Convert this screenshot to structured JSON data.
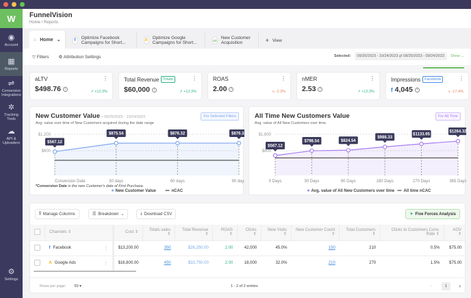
{
  "app": {
    "title": "FunnelVision",
    "breadcrumb": "Home  /  Reports",
    "logo_text": "W"
  },
  "sidebar": {
    "items": [
      {
        "label": "Account",
        "icon": "user-circle-icon",
        "glyph": "◉"
      },
      {
        "label": "Reports",
        "icon": "grid-icon",
        "glyph": "▦",
        "active": true
      },
      {
        "label": "Conversion Integrations",
        "icon": "route-icon",
        "glyph": "⇌"
      },
      {
        "label": "Tracking Tools",
        "icon": "hub-icon",
        "glyph": "✲"
      },
      {
        "label": "API & Uploaders",
        "icon": "cloud-upload-icon",
        "glyph": "☁"
      }
    ],
    "settings": {
      "label": "Settings",
      "icon": "gear-icon",
      "glyph": "⚙"
    }
  },
  "tabs": [
    {
      "label": "Home",
      "icon": "home-icon"
    },
    {
      "label": "Optimize Facebook Campaigns for Short...",
      "icon": "facebook-icon",
      "glyph": "f"
    },
    {
      "label": "Optimize Google Campaigns for Short...",
      "icon": "google-ads-icon",
      "glyph": "A"
    },
    {
      "label": "New Customer Acquisition",
      "icon": "all-icon",
      "glyph": "All"
    }
  ],
  "add_view": "View",
  "filters": {
    "filters_label": "Filters",
    "attribution_label": "Attribution Settings",
    "selected_label": "Selected:",
    "date_range": "09/25/2023 - 10/24/2023",
    "compare_range": "08/25/2023 - 09/24/2023",
    "show_label": "Show"
  },
  "kpis": [
    {
      "name": "aLTV",
      "value": "$498.76",
      "change": "+12.3%",
      "trend": "up"
    },
    {
      "name": "Total Revenue",
      "badge": "Totals",
      "value": "$60,000",
      "change": "+12.3%",
      "trend": "up"
    },
    {
      "name": "ROAS",
      "value": "2.00",
      "change": "-2.3%",
      "trend": "down"
    },
    {
      "name": "nMER",
      "value": "2.53",
      "change": "+12.3%",
      "trend": "up"
    },
    {
      "name": "Impressions",
      "badge": "Facebook",
      "value": "4,045",
      "change": "-17.4%",
      "trend": "down"
    }
  ],
  "colors": {
    "up": "#2db38a",
    "down": "#e8825a",
    "blue": "#7fa7ee",
    "purple": "#a77ef0",
    "green": "#6dbf5f"
  },
  "chart_data": [
    {
      "type": "line",
      "title": "New Customer Value",
      "date": "09/25/2023 - 10/24/2023",
      "subtitle": "Avg. value over time of New Customers acquired during the date range",
      "badge": "For Selected Filters",
      "categories": [
        "Conversion Date",
        "30 days",
        "60 days",
        "90 days"
      ],
      "series": [
        {
          "name": "New Customer Value",
          "values": [
            567.12,
            875.54,
            876.32,
            876.32
          ],
          "labels": [
            "$567.12",
            "$875.54",
            "$876.32",
            "$876.32"
          ]
        },
        {
          "name": "nCAC",
          "values": [
            250,
            250,
            250,
            250
          ]
        }
      ],
      "yticks": [
        "$600",
        "$1,200"
      ],
      "ytick_values": [
        600,
        1200
      ],
      "ylim": [
        0,
        1200
      ],
      "grid": true,
      "legend": "bottom",
      "note_bold": "*Conversion Date",
      "note_rest": " is the new Customer's date of First Purchase."
    },
    {
      "type": "line",
      "title": "All Time New Customers Value",
      "subtitle": "Avg. value of All New Customers over time.",
      "badge": "For All Time",
      "categories": [
        "0 Days",
        "30 Days",
        "90 Days",
        "180 Days",
        "270 Days",
        "365 Days"
      ],
      "series": [
        {
          "name": "Avg. value of All New Customers over time",
          "values": [
            567.12,
            798.54,
            824.54,
            988.33,
            1133.95,
            1264.32
          ],
          "labels": [
            "$567.12",
            "$798.54",
            "$824.54",
            "$988.33",
            "$1133.95",
            "$1264.32"
          ]
        },
        {
          "name": "All time nCAC",
          "values": [
            450,
            450,
            450,
            450,
            450,
            450
          ]
        }
      ],
      "yticks": [
        "$800",
        "$1,600"
      ],
      "ytick_values": [
        800,
        1600
      ],
      "ylim": [
        0,
        1600
      ],
      "grid": true,
      "legend": "bottom"
    }
  ],
  "table": {
    "buttons": {
      "manage": "Manage Columns",
      "breakdown": "Breakdown",
      "download": "Download CSV",
      "ffa": "Five Forces Analysis"
    },
    "columns": [
      "Channels",
      "Cost",
      "Totals sales",
      "Total Revenue",
      "ROAS",
      "Clicks",
      "New Visits",
      "New Customer Count",
      "Total Customers",
      "Clicks to Customers Conv. Rate",
      "AOV"
    ],
    "rows": [
      {
        "channel": "Facebook",
        "glyph": "f",
        "cost": "$13,200.00",
        "sales": "350",
        "revenue": "$26,250.00",
        "roas": "2.00",
        "clicks": "42,000",
        "visits": "45.0%",
        "ncc": "150",
        "total": "210",
        "rate": "0.5%",
        "aov": "$75.00"
      },
      {
        "channel": "Google Ads",
        "glyph": "A",
        "cost": "$16,800.00",
        "sales": "450",
        "revenue": "$33,750.00",
        "roas": "2.00",
        "clicks": "18,000",
        "visits": "32.0%",
        "ncc": "210",
        "total": "270",
        "rate": "1.5%",
        "aov": "$75.00"
      }
    ],
    "rows_per_page_label": "Rows per page:",
    "rows_per_page": "50",
    "entries": "1 - 2 of 2 entries",
    "page": "1"
  }
}
